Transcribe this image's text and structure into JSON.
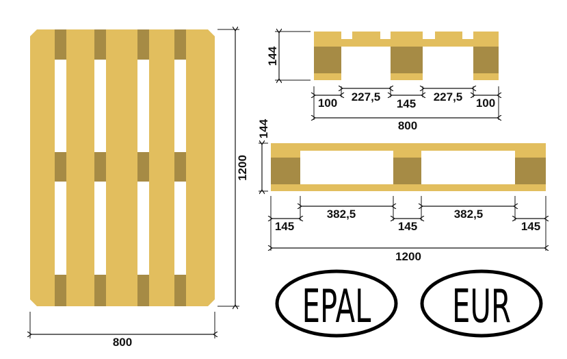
{
  "colors": {
    "wood_light": "#E2BE5E",
    "wood_dark": "#A68B45",
    "line": "#111111"
  },
  "top_view": {
    "width_label": "800",
    "length_label": "1200"
  },
  "side_view_short": {
    "height_label": "144",
    "segments": [
      "100",
      "227,5",
      "145",
      "227,5",
      "100"
    ],
    "total_label": "800"
  },
  "side_view_long": {
    "height_label": "144",
    "segments": [
      "145",
      "382,5",
      "145",
      "382,5",
      "145"
    ],
    "total_label": "1200"
  },
  "logos": {
    "epal": "EPAL",
    "eur": "EUR"
  }
}
